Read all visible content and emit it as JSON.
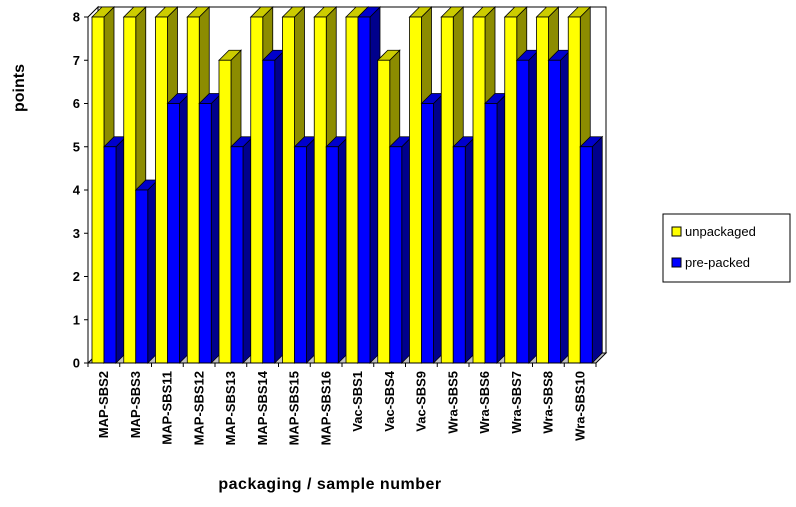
{
  "chart_data": {
    "type": "bar",
    "title": "",
    "xlabel": "packaging / sample number",
    "ylabel": "points",
    "ylim": [
      0,
      8
    ],
    "yticks": [
      0,
      1,
      2,
      3,
      4,
      5,
      6,
      7,
      8
    ],
    "grid": false,
    "legend_position": "right",
    "categories": [
      "MAP-SBS2",
      "MAP-SBS3",
      "MAP-SBS11",
      "MAP-SBS12",
      "MAP-SBS13",
      "MAP-SBS14",
      "MAP-SBS15",
      "MAP-SBS16",
      "Vac-SBS1",
      "Vac-SBS4",
      "Vac-SBS9",
      "Wra-SBS5",
      "Wra-SBS6",
      "Wra-SBS7",
      "Wra-SBS8",
      "Wra-SBS10"
    ],
    "series": [
      {
        "name": "unpackaged",
        "color": "#ffff00",
        "values": [
          8,
          8,
          8,
          8,
          7,
          8,
          8,
          8,
          8,
          7,
          8,
          8,
          8,
          8,
          8,
          8
        ]
      },
      {
        "name": "pre-packed",
        "color": "#0000ff",
        "values": [
          5,
          4,
          6,
          6,
          5,
          7,
          5,
          5,
          8,
          5,
          6,
          5,
          6,
          7,
          7,
          5
        ]
      }
    ]
  }
}
